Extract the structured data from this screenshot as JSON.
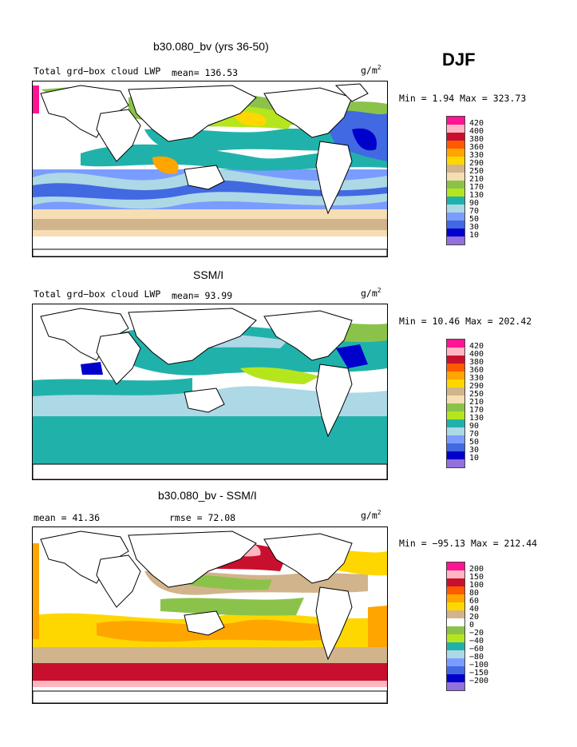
{
  "season": "DJF",
  "units": {
    "base": "g/m",
    "exp": "2"
  },
  "panels": [
    {
      "title": "b30.080_bv (yrs 36-50)",
      "subtitle": "Total grd−box cloud LWP",
      "mean_text": "mean=  136.53",
      "minmax": "Min =    1.94 Max = 323.73",
      "levels": [
        "420",
        "400",
        "380",
        "360",
        "330",
        "290",
        "250",
        "210",
        "170",
        "130",
        "90",
        "70",
        "50",
        "30",
        "10"
      ],
      "colors": [
        "#ff1493",
        "#ffb6c1",
        "#c8102e",
        "#ff5a00",
        "#ffa500",
        "#ffd700",
        "#d2b48c",
        "#f5deb3",
        "#8bc34a",
        "#b5e61d",
        "#20b2aa",
        "#add8e6",
        "#7b9cff",
        "#4169e1",
        "#0000cd",
        "#9370db"
      ]
    },
    {
      "title": "SSM/I",
      "subtitle": "Total grd−box cloud LWP",
      "mean_text": "mean=   93.99",
      "minmax": "Min =   10.46 Max = 202.42",
      "levels": [
        "420",
        "400",
        "380",
        "360",
        "330",
        "290",
        "250",
        "210",
        "170",
        "130",
        "90",
        "70",
        "50",
        "30",
        "10"
      ],
      "colors": [
        "#ff1493",
        "#ffb6c1",
        "#c8102e",
        "#ff5a00",
        "#ffa500",
        "#ffd700",
        "#d2b48c",
        "#f5deb3",
        "#8bc34a",
        "#b5e61d",
        "#20b2aa",
        "#add8e6",
        "#7b9cff",
        "#4169e1",
        "#0000cd",
        "#9370db"
      ]
    },
    {
      "title": "b30.080_bv - SSM/I",
      "subtitle": "mean =   41.36",
      "mean_text": "rmse =   72.08",
      "minmax": "Min = −95.13 Max = 212.44",
      "levels": [
        "200",
        "150",
        "100",
        "80",
        "60",
        "40",
        "20",
        "0",
        "−20",
        "−40",
        "−60",
        "−80",
        "−100",
        "−150",
        "−200"
      ],
      "colors": [
        "#ff1493",
        "#ffb6c1",
        "#c8102e",
        "#ff5a00",
        "#ffa500",
        "#ffd700",
        "#d2b48c",
        "#ffffff",
        "#8bc34a",
        "#b5e61d",
        "#20b2aa",
        "#add8e6",
        "#7b9cff",
        "#4169e1",
        "#0000cd",
        "#9370db"
      ]
    }
  ]
}
